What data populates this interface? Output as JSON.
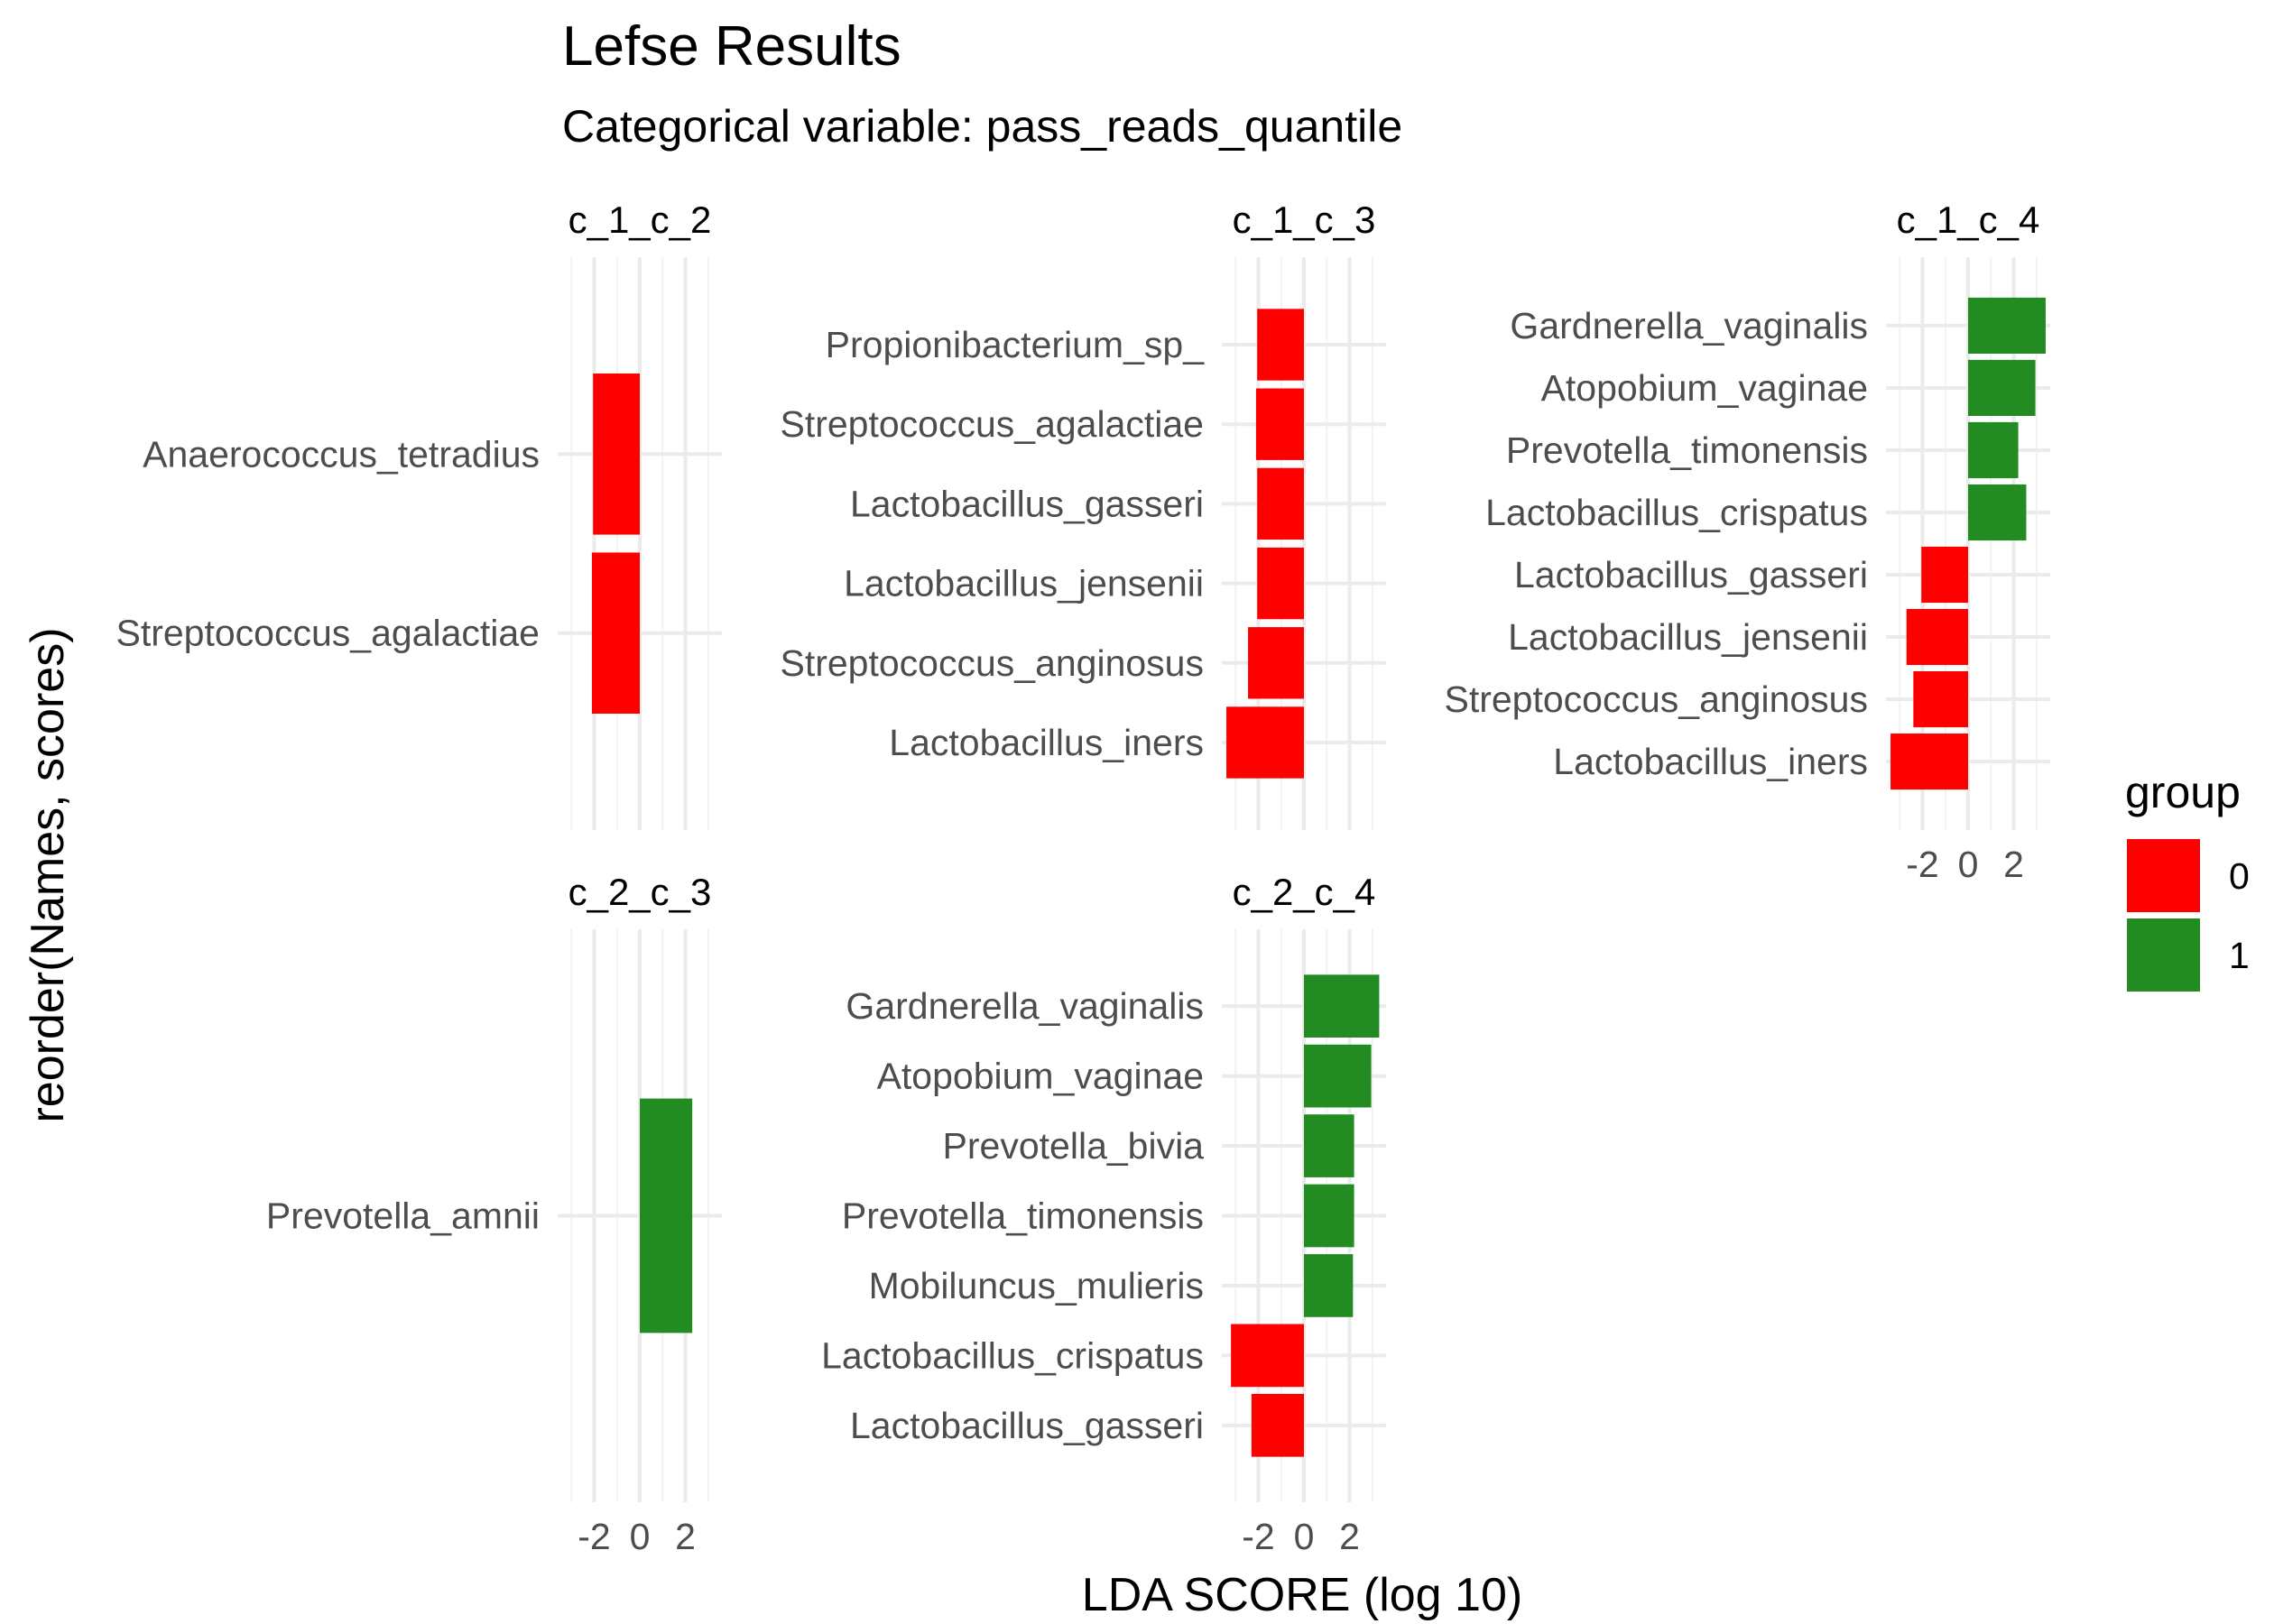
{
  "chart_data": {
    "type": "bar",
    "orientation": "horizontal",
    "title": "Lefse Results",
    "subtitle": "Categorical variable: pass_reads_quantile",
    "xlabel": "LDA SCORE (log 10)",
    "ylabel": "reorder(Names, scores)",
    "xlim": [
      -3.6,
      3.6
    ],
    "x_ticks": [
      -2,
      0,
      2
    ],
    "grid": true,
    "legend": {
      "title": "group",
      "placement": "right",
      "entries": [
        {
          "label": "0",
          "color": "#ff0000"
        },
        {
          "label": "1",
          "color": "#228b22"
        }
      ]
    },
    "panels": [
      {
        "strip": "c_1_c_2",
        "bars": [
          {
            "name": "Anaerococcus_tetradius",
            "value": -2.05,
            "group": "0"
          },
          {
            "name": "Streptococcus_agalactiae",
            "value": -2.1,
            "group": "0"
          }
        ]
      },
      {
        "strip": "c_1_c_3",
        "bars": [
          {
            "name": "Propionibacterium_sp_",
            "value": -2.05,
            "group": "0"
          },
          {
            "name": "Streptococcus_agalactiae",
            "value": -2.1,
            "group": "0"
          },
          {
            "name": "Lactobacillus_gasseri",
            "value": -2.05,
            "group": "0"
          },
          {
            "name": "Lactobacillus_jensenii",
            "value": -2.05,
            "group": "0"
          },
          {
            "name": "Streptococcus_anginosus",
            "value": -2.45,
            "group": "0"
          },
          {
            "name": "Lactobacillus_iners",
            "value": -3.4,
            "group": "0"
          }
        ]
      },
      {
        "strip": "c_1_c_4",
        "bars": [
          {
            "name": "Gardnerella_vaginalis",
            "value": 3.4,
            "group": "1"
          },
          {
            "name": "Atopobium_vaginae",
            "value": 2.95,
            "group": "1"
          },
          {
            "name": "Prevotella_timonensis",
            "value": 2.2,
            "group": "1"
          },
          {
            "name": "Lactobacillus_crispatus",
            "value": 2.55,
            "group": "1"
          },
          {
            "name": "Lactobacillus_gasseri",
            "value": -2.05,
            "group": "0"
          },
          {
            "name": "Lactobacillus_jensenii",
            "value": -2.7,
            "group": "0"
          },
          {
            "name": "Streptococcus_anginosus",
            "value": -2.4,
            "group": "0"
          },
          {
            "name": "Lactobacillus_iners",
            "value": -3.4,
            "group": "0"
          }
        ]
      },
      {
        "strip": "c_2_c_3",
        "bars": [
          {
            "name": "Prevotella_amnii",
            "value": 2.3,
            "group": "1"
          }
        ]
      },
      {
        "strip": "c_2_c_4",
        "bars": [
          {
            "name": "Gardnerella_vaginalis",
            "value": 3.3,
            "group": "1"
          },
          {
            "name": "Atopobium_vaginae",
            "value": 2.95,
            "group": "1"
          },
          {
            "name": "Prevotella_bivia",
            "value": 2.2,
            "group": "1"
          },
          {
            "name": "Prevotella_timonensis",
            "value": 2.2,
            "group": "1"
          },
          {
            "name": "Mobiluncus_mulieris",
            "value": 2.15,
            "group": "1"
          },
          {
            "name": "Lactobacillus_crispatus",
            "value": -3.2,
            "group": "0"
          },
          {
            "name": "Lactobacillus_gasseri",
            "value": -2.3,
            "group": "0"
          }
        ]
      }
    ]
  }
}
